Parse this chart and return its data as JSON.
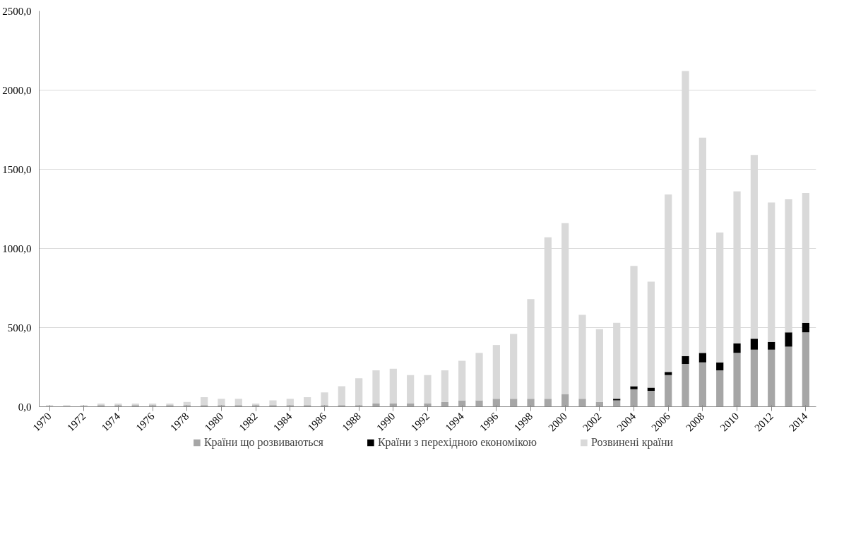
{
  "chart_data": {
    "type": "bar",
    "stacked": true,
    "categories": [
      "1970",
      null,
      "1972",
      null,
      "1974",
      null,
      "1976",
      null,
      "1978",
      null,
      "1980",
      null,
      "1982",
      null,
      "1984",
      null,
      "1986",
      null,
      "1988",
      null,
      "1990",
      null,
      "1992",
      null,
      "1994",
      null,
      "1996",
      null,
      "1998",
      null,
      "2000",
      null,
      "2002",
      null,
      "2004",
      null,
      "2006",
      null,
      "2008",
      null,
      "2010",
      null,
      "2012",
      null,
      "2014"
    ],
    "series": [
      {
        "name": "Країни що розвиваються",
        "color": "#a6a6a6",
        "values": [
          0,
          0,
          0,
          10,
          10,
          10,
          10,
          10,
          10,
          10,
          10,
          10,
          10,
          10,
          10,
          10,
          10,
          10,
          10,
          20,
          20,
          20,
          20,
          30,
          40,
          40,
          50,
          50,
          50,
          50,
          80,
          50,
          30,
          40,
          110,
          100,
          200,
          270,
          280,
          230,
          340,
          360,
          360,
          380,
          470
        ]
      },
      {
        "name": "Країни з перехідною економікою",
        "color": "#000000",
        "values": [
          0,
          0,
          0,
          0,
          0,
          0,
          0,
          0,
          0,
          0,
          0,
          0,
          0,
          0,
          0,
          0,
          0,
          0,
          0,
          0,
          0,
          0,
          0,
          0,
          0,
          0,
          0,
          0,
          0,
          0,
          0,
          0,
          0,
          10,
          20,
          20,
          20,
          50,
          60,
          50,
          60,
          70,
          50,
          90,
          60
        ]
      },
      {
        "name": "Розвинені країни",
        "color": "#d9d9d9",
        "values": [
          10,
          10,
          10,
          10,
          10,
          10,
          10,
          10,
          20,
          50,
          40,
          40,
          10,
          30,
          40,
          50,
          80,
          120,
          170,
          210,
          220,
          180,
          180,
          200,
          250,
          300,
          340,
          410,
          630,
          1020,
          1080,
          530,
          460,
          480,
          760,
          670,
          1120,
          1800,
          1360,
          820,
          960,
          1160,
          880,
          840,
          820
        ]
      }
    ],
    "ylim": [
      0,
      2500
    ],
    "yticks": [
      {
        "value": 0,
        "label": "0,0"
      },
      {
        "value": 500,
        "label": "500,0"
      },
      {
        "value": 1000,
        "label": "1000,0"
      },
      {
        "value": 1500,
        "label": "1500,0"
      },
      {
        "value": 2000,
        "label": "2000,0"
      },
      {
        "value": 2500,
        "label": "2500,0"
      }
    ],
    "grid": "y",
    "legend": "bottom"
  }
}
